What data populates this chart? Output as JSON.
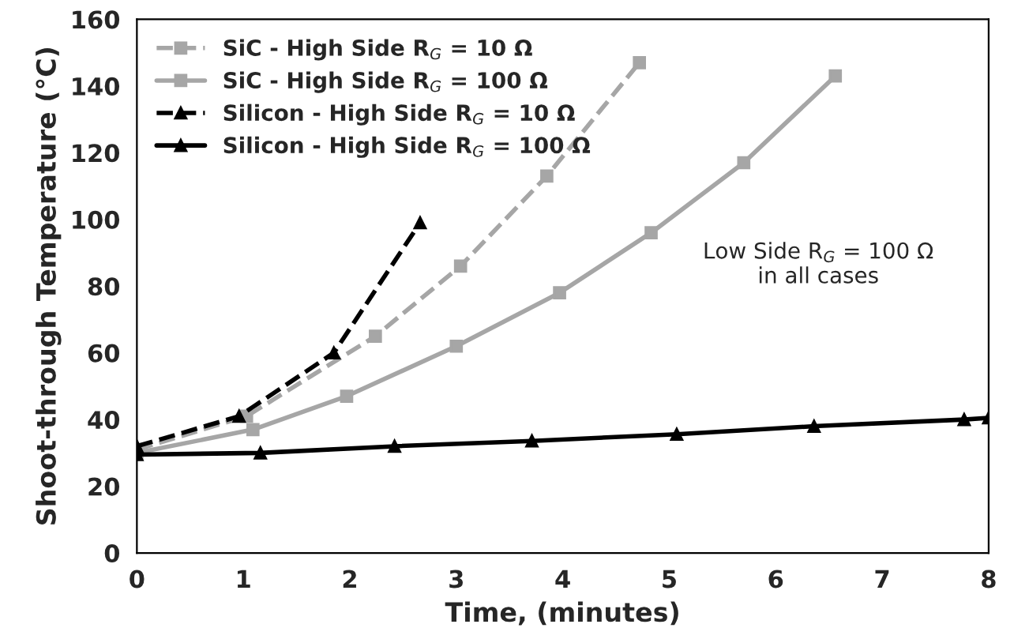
{
  "chart_data": {
    "type": "line",
    "xlabel": "Time, (minutes)",
    "ylabel": "Shoot-through Temperature (°C)",
    "xlim": [
      0,
      8
    ],
    "xticks": [
      0,
      1,
      2,
      3,
      4,
      5,
      6,
      7,
      8
    ],
    "ylim": [
      0,
      160
    ],
    "yticks": [
      0,
      20,
      40,
      60,
      80,
      100,
      120,
      140,
      160
    ],
    "grid": false,
    "legend": "top left",
    "annotations": [
      "Low Side R$_{G}$ = 100 Ω\nin all cases"
    ],
    "series": [
      {
        "name": "SiC - High Side R$_{G}$ = 10 Ω",
        "color": "#a6a6a6",
        "line_style": "dashed",
        "marker": "square",
        "x": [
          0,
          1.03,
          2.24,
          3.04,
          3.85,
          4.72
        ],
        "values": [
          31,
          41,
          65,
          86,
          113,
          147
        ]
      },
      {
        "name": "SiC - High Side R$_{G}$ = 100 Ω",
        "color": "#a6a6a6",
        "line_style": "solid",
        "marker": "square",
        "x": [
          0,
          1.09,
          1.97,
          3.0,
          3.97,
          4.83,
          5.7,
          6.56
        ],
        "values": [
          30,
          37,
          47,
          62,
          78,
          96,
          117,
          143
        ]
      },
      {
        "name": "Silicon - High Side R$_{G}$ = 10 Ω",
        "color": "#000000",
        "line_style": "dashed",
        "marker": "triangle",
        "x": [
          0,
          0.96,
          1.85,
          2.66
        ],
        "values": [
          32,
          41,
          60,
          99
        ]
      },
      {
        "name": "Silicon - High Side R$_{G}$ = 100 Ω",
        "color": "#000000",
        "line_style": "solid",
        "marker": "triangle",
        "x": [
          0,
          1.16,
          2.42,
          3.71,
          5.07,
          6.36,
          7.77,
          8
        ],
        "values": [
          29.5,
          30,
          32,
          33.6,
          35.6,
          38,
          40,
          40.5
        ]
      }
    ]
  }
}
